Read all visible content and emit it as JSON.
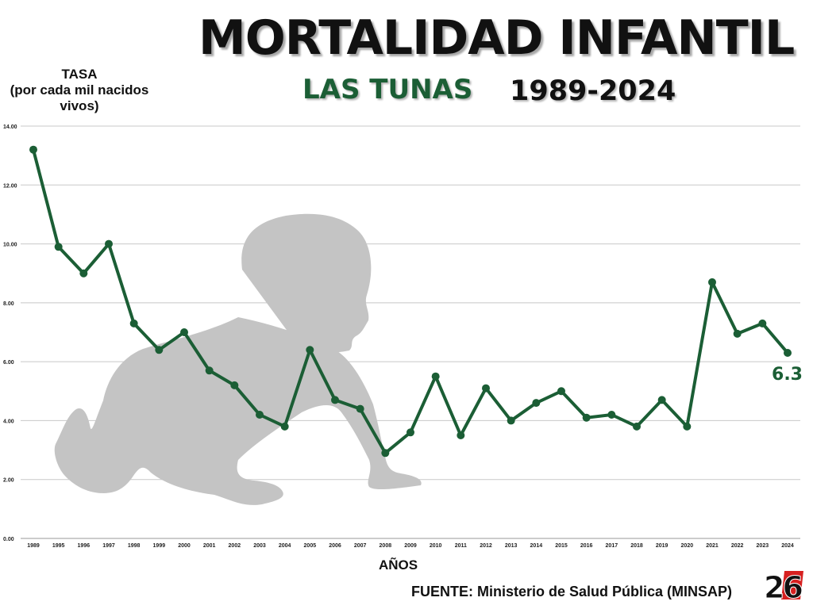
{
  "header": {
    "title": "MORTALIDAD INFANTIL",
    "subtitle": "LAS TUNAS",
    "period": "1989-2024"
  },
  "footer": {
    "source": "FUENTE: Ministerio de Salud Pública (MINSAP)",
    "logo_text": "26"
  },
  "colors": {
    "line": "#1b5e35",
    "grid": "#c8c8c8",
    "silhouette": "#c4c4c4"
  },
  "icons": {
    "background": "crawling-baby-silhouette",
    "logo": "radio-26-logo"
  },
  "chart_data": {
    "type": "line",
    "title": "MORTALIDAD INFANTIL",
    "ylabel": "TASA\n(por cada mil nacidos vivos)",
    "xlabel": "AÑOS",
    "ylim": [
      0,
      14
    ],
    "yticks": [
      "0.00",
      "2.00",
      "4.00",
      "6.00",
      "8.00",
      "10.00",
      "12.00",
      "14.00"
    ],
    "grid": true,
    "categories": [
      "1989",
      "1995",
      "1996",
      "1997",
      "1998",
      "1999",
      "2000",
      "2001",
      "2002",
      "2003",
      "2004",
      "2005",
      "2006",
      "2007",
      "2008",
      "2009",
      "2010",
      "2011",
      "2012",
      "2013",
      "2014",
      "2015",
      "2016",
      "2017",
      "2018",
      "2019",
      "2020",
      "2021",
      "2022",
      "2023",
      "2024"
    ],
    "series": [
      {
        "values": [
          13.2,
          9.9,
          9.0,
          10.0,
          7.3,
          6.4,
          7.0,
          5.7,
          5.2,
          4.2,
          3.8,
          6.4,
          4.7,
          4.4,
          2.9,
          3.6,
          5.5,
          3.5,
          5.1,
          4.0,
          4.6,
          5.0,
          4.1,
          4.2,
          3.8,
          4.7,
          3.8,
          8.7,
          6.95,
          7.3,
          6.3
        ]
      }
    ],
    "annotation": "6.3"
  }
}
